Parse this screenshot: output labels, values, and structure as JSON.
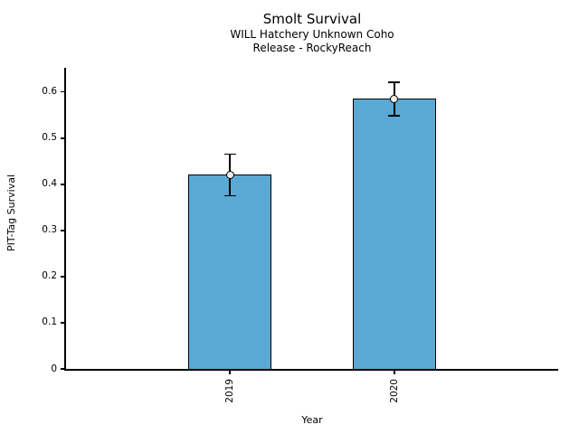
{
  "figure": {
    "title": "Smolt Survival",
    "subtitle_line1": "WILL Hatchery Unknown Coho",
    "subtitle_line2": "Release - RockyReach"
  },
  "chart_data": {
    "type": "bar",
    "title": "Smolt Survival",
    "subtitle": [
      "WILL Hatchery Unknown Coho",
      "Release - RockyReach"
    ],
    "categories": [
      "2019",
      "2020"
    ],
    "values": [
      0.42,
      0.585
    ],
    "error_bars": {
      "low": [
        0.375,
        0.548
      ],
      "high": [
        0.465,
        0.62
      ]
    },
    "xlabel": "Year",
    "ylabel": "PIT-Tag Survival",
    "yticks": [
      0,
      0.1,
      0.2,
      0.3,
      0.4,
      0.5,
      0.6
    ],
    "ytick_labels": [
      "0",
      "0.1",
      "0.2",
      "0.3",
      "0.4",
      "0.5",
      "0.6"
    ],
    "ylim": [
      0,
      0.652
    ],
    "grid": false,
    "legend": false,
    "bar_color": "#5AA9D4",
    "bar_edge_color": "#000000",
    "errorbar_color": "#000000",
    "marker": "open-circle",
    "marker_fill": "#ededed"
  }
}
